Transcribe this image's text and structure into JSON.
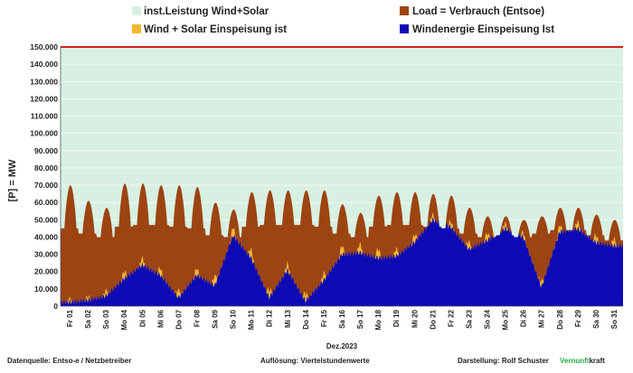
{
  "legend": [
    {
      "key": "installed",
      "label": "inst.Leistung Wind+Solar",
      "color": "#d8f0e2"
    },
    {
      "key": "load",
      "label": "Load =  Verbrauch (Entsoe)",
      "color": "#9c4412"
    },
    {
      "key": "windsolar",
      "label": "Wind + Solar Einspeisung ist",
      "color": "#f5b731"
    },
    {
      "key": "wind",
      "label": "Windenergie Einspeisung Ist",
      "color": "#0d0ab4"
    }
  ],
  "footer": {
    "source": "Datenquelle: Entso-e  / Netzbetreiber",
    "resolution": "Auflösung: Viertelstundenwerte",
    "author": "Darstellung:  Rolf Schuster",
    "brand_green": "Vernunft",
    "brand_rest": "kraft"
  },
  "colors": {
    "installed_bg": "#d8f0e2",
    "installed_line": "#d42020",
    "load": "#9c4412",
    "windsolar": "#f5b731",
    "wind": "#0d0ab4",
    "grid": "#ffffff",
    "brand_green": "#2aa84a"
  },
  "chart_data": {
    "type": "area",
    "ylabel": "[P] = MW",
    "xlabel": "Dez.2023",
    "ylim": [
      0,
      150000
    ],
    "yticks": [
      "0",
      "10.000",
      "20.000",
      "30.000",
      "40.000",
      "50.000",
      "60.000",
      "70.000",
      "80.000",
      "90.000",
      "100.000",
      "110.000",
      "120.000",
      "130.000",
      "140.000",
      "150.000"
    ],
    "days": [
      "Fr 01",
      "Sa 02",
      "So 03",
      "Mo 04",
      "Di 05",
      "Mi 06",
      "Do 07",
      "Fr 08",
      "Sa 09",
      "So 10",
      "Mo 11",
      "Di 12",
      "Mi 13",
      "Do 14",
      "Fr 15",
      "Sa 16",
      "So 17",
      "Mo 18",
      "Di 19",
      "Mi 20",
      "Do 21",
      "Fr 22",
      "Sa 23",
      "So 24",
      "Mo 25",
      "Di 26",
      "Mi 27",
      "Do 28",
      "Fr 29",
      "Sa 30",
      "So 31"
    ],
    "installed_capacity": 150000,
    "series": [
      {
        "name": "Load =  Verbrauch (Entsoe)",
        "day_min": [
          45000,
          42000,
          40000,
          46000,
          47000,
          47000,
          46000,
          45000,
          41000,
          40000,
          46000,
          47000,
          47000,
          47000,
          46000,
          42000,
          40000,
          46000,
          47000,
          47000,
          46000,
          45000,
          42000,
          40000,
          41000,
          40000,
          42000,
          44000,
          44000,
          41000,
          38000
        ],
        "day_max": [
          70000,
          61000,
          57000,
          71000,
          71000,
          70000,
          70000,
          69000,
          60000,
          56000,
          66000,
          67000,
          67000,
          67000,
          67000,
          59000,
          54000,
          64000,
          66000,
          66000,
          65000,
          64000,
          57000,
          52000,
          52000,
          50000,
          52000,
          57000,
          57000,
          53000,
          50000
        ]
      },
      {
        "name": "Wind + Solar Einspeisung ist",
        "day_peak_addition": [
          2000,
          2000,
          3000,
          4000,
          4000,
          4000,
          4000,
          4000,
          5000,
          5000,
          5000,
          4000,
          4000,
          4000,
          4000,
          5000,
          5000,
          5000,
          4000,
          4000,
          3000,
          3000,
          4000,
          4000,
          3000,
          3000,
          3000,
          4000,
          4000,
          4000,
          4000
        ]
      },
      {
        "name": "Windenergie Einspeisung Ist",
        "daily_mean": [
          2500,
          3500,
          6000,
          16000,
          24000,
          18000,
          5000,
          18000,
          12000,
          41000,
          28000,
          5000,
          21000,
          3000,
          15000,
          30000,
          31000,
          28000,
          29000,
          37000,
          50000,
          46000,
          33000,
          38000,
          45000,
          40000,
          11000,
          43000,
          45000,
          37000,
          35000
        ]
      }
    ]
  }
}
